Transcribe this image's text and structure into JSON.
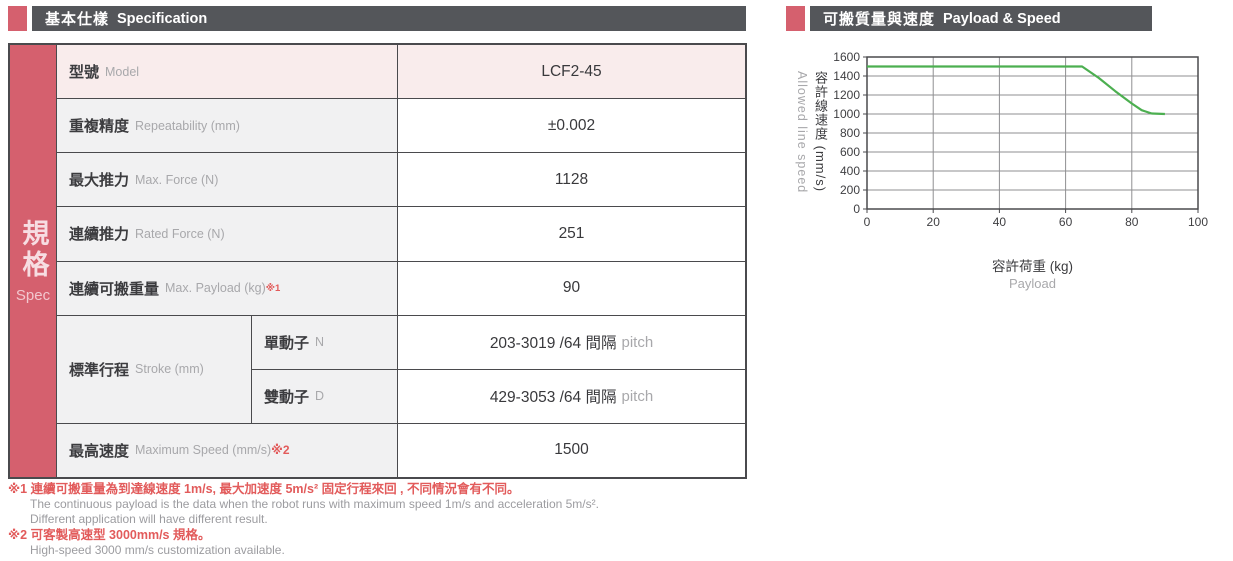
{
  "colors": {
    "accent": "#d5606e",
    "header_bar": "#54565a",
    "row_pink": "#f9ecec",
    "row_gray": "#f1f1f2",
    "border": "#4a4a4d",
    "footnote_red": "#e25b5b",
    "text_dark": "#3c3c3f",
    "text_gray": "#a8a8ab",
    "line_green": "#4caf50"
  },
  "left_section": {
    "header": {
      "title_zh": "基本仕樣",
      "title_en": "Specification"
    },
    "sidebar": {
      "zh": "規格",
      "en": "Spec"
    },
    "rows": [
      {
        "label_zh": "型號",
        "label_en": "Model",
        "value": "LCF2-45"
      },
      {
        "label_zh": "重複精度",
        "label_en": "Repeatability (mm)",
        "value": "±0.002"
      },
      {
        "label_zh": "最大推力",
        "label_en": "Max. Force (N)",
        "value": "1128"
      },
      {
        "label_zh": "連續推力",
        "label_en": "Rated Force (N)",
        "value": "251"
      },
      {
        "label_zh": "連續可搬重量",
        "label_en": "Max. Payload (kg)",
        "note_ref": "※1",
        "value": "90"
      },
      {
        "label_zh": "標準行程",
        "label_en": "Stroke (mm)"
      },
      {
        "label_zh": "最高速度",
        "label_en": "Maximum Speed (mm/s)",
        "note_ref": "※2",
        "value": "1500"
      }
    ],
    "stroke_sub_rows": [
      {
        "label_zh": "單動子",
        "label_en": "N",
        "value_main": "203-3019 /64 間隔",
        "value_suffix": "pitch"
      },
      {
        "label_zh": "雙動子",
        "label_en": "D",
        "value_main": "429-3053 /64 間隔",
        "value_suffix": "pitch"
      }
    ],
    "footnotes": [
      {
        "style": "red",
        "text": "※1 連續可搬重量為到達線速度 1m/s, 最大加速度 5m/s² 固定行程來回 , 不同情況會有不同。"
      },
      {
        "style": "gray",
        "text": "The continuous payload is the data when the robot runs with maximum speed 1m/s and acceleration 5m/s²."
      },
      {
        "style": "gray",
        "text": "Different application will have different result."
      },
      {
        "style": "red",
        "text": "※2 可客製高速型 3000mm/s 規格。"
      },
      {
        "style": "gray",
        "text": "High-speed 3000 mm/s customization available."
      }
    ]
  },
  "right_section": {
    "header": {
      "title_zh": "可搬質量與速度",
      "title_en": "Payload & Speed"
    },
    "chart_data": {
      "type": "line",
      "x": [
        0,
        65,
        70,
        75,
        80,
        83,
        86,
        90
      ],
      "y": [
        1500,
        1500,
        1380,
        1240,
        1110,
        1040,
        1005,
        1000
      ],
      "xlim": [
        0,
        100
      ],
      "ylim": [
        0,
        1600
      ],
      "xticks": [
        0,
        20,
        40,
        60,
        80,
        100
      ],
      "yticks": [
        0,
        200,
        400,
        600,
        800,
        1000,
        1200,
        1400,
        1600
      ],
      "grid": true,
      "legend": "none",
      "xlabel_zh": "容許荷重 (kg)",
      "xlabel_en": "Payload",
      "ylabel_zh": "容許線速度 (mm/s)",
      "ylabel_en": "Allowed line speed",
      "line_color": "#4caf50"
    }
  }
}
